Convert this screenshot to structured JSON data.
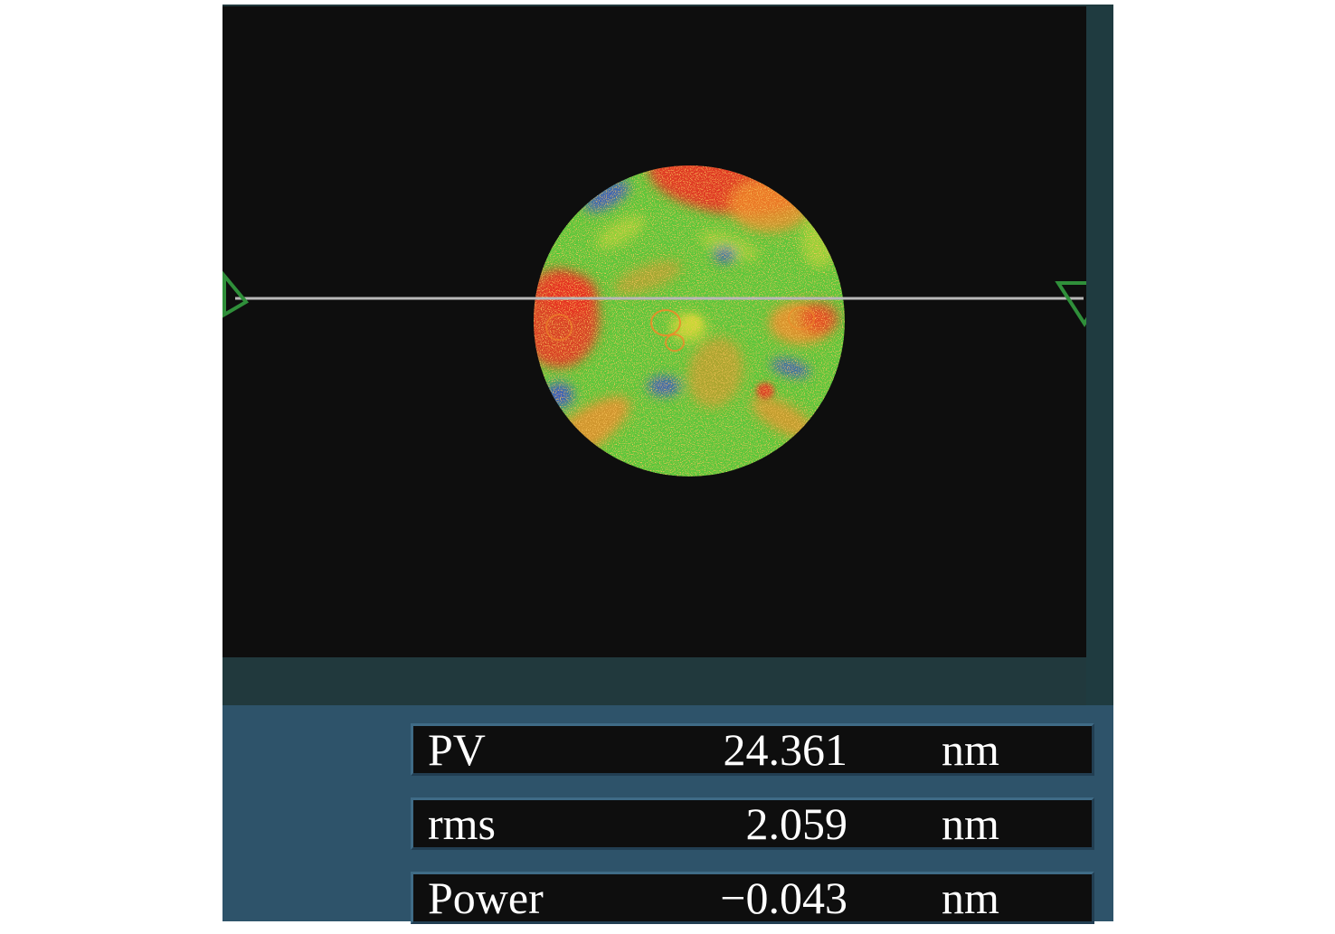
{
  "map": {
    "colors": {
      "background": "#0e0e0e",
      "green": "#5cc63b",
      "yellow": "#c8d835",
      "orange": "#ee8a2a",
      "red": "#e63322",
      "blue": "#3a56c4",
      "profile_line": "#b9b9b9",
      "marker": "#2f8f3a"
    },
    "icons": {
      "left_marker": "triangle-marker-icon",
      "right_marker": "triangle-marker-icon"
    }
  },
  "results": {
    "rows": [
      {
        "label": "PV",
        "value": "24.361",
        "unit": "nm"
      },
      {
        "label": "rms",
        "value": "2.059",
        "unit": "nm"
      },
      {
        "label": "Power",
        "value": "−0.043",
        "unit": "nm"
      }
    ]
  }
}
